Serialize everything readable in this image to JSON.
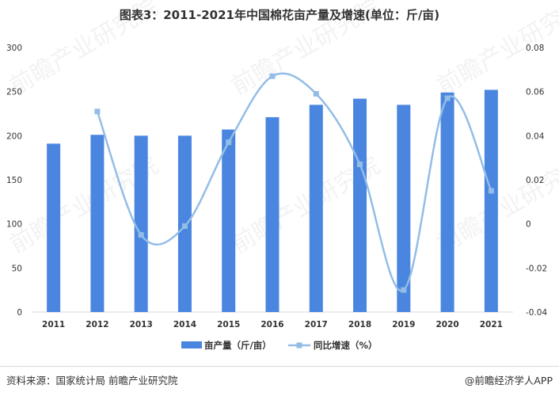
{
  "header": {
    "title": "图表3：2011-2021年中国棉花亩产量及增速(单位：斤/亩)"
  },
  "footer": {
    "source": "资料来源：国家统计局 前瞻产业研究院",
    "brand": "@前瞻经济学人APP"
  },
  "watermark": "前瞻产业研究院",
  "colors": {
    "bar": "#4a86e0",
    "line": "#93bde6",
    "axis": "#d9d9d9",
    "text": "#333333"
  },
  "chart_data": {
    "type": "bar",
    "categories": [
      "2011",
      "2012",
      "2013",
      "2014",
      "2015",
      "2016",
      "2017",
      "2018",
      "2019",
      "2020",
      "2021"
    ],
    "series": [
      {
        "name": "亩产量（斤/亩）",
        "type": "bar",
        "axis": "left",
        "values": [
          191,
          201,
          200,
          200,
          207,
          221,
          235,
          242,
          235,
          249,
          252
        ]
      },
      {
        "name": "同比增速（%）",
        "type": "line",
        "axis": "right",
        "smooth": true,
        "values": [
          null,
          0.051,
          -0.005,
          -0.001,
          0.037,
          0.067,
          0.059,
          0.027,
          -0.03,
          0.057,
          0.015
        ]
      }
    ],
    "ylim_left": [
      0,
      300
    ],
    "yticks_left": [
      "0",
      "50",
      "100",
      "150",
      "200",
      "250",
      "300"
    ],
    "ylim_right": [
      -0.04,
      0.08
    ],
    "yticks_right": [
      "-0.04",
      "-0.02",
      "0",
      "0.02",
      "0.04",
      "0.06",
      "0.08"
    ],
    "legend": "bottom",
    "grid": false
  }
}
